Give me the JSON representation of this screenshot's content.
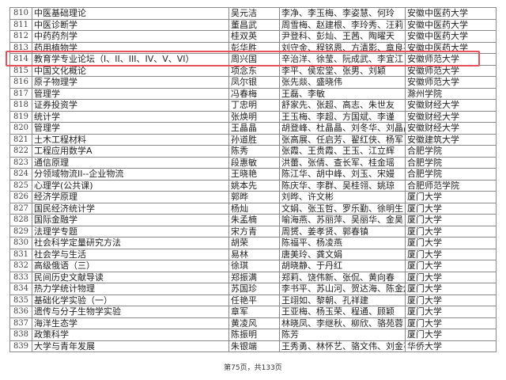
{
  "table": {
    "rows": [
      [
        "810",
        "中医基础理论",
        "吴元洁",
        "李净、李玉梅、李姿慧、何玲",
        "安徽中医药大学"
      ],
      [
        "811",
        "中医诊断学",
        "董昌武",
        "周雪梅、赵建根、李玲秀、汪莉",
        "安徽中医药大学"
      ],
      [
        "812",
        "中药药剂学",
        "桂双英",
        "尹登科、彭灿、王茜、陶曜天",
        "安徽中医药大学"
      ],
      [
        "813",
        "药用植物学",
        "彭华胜",
        "刘守金、程铭恩、方清影、章良平",
        "安徽中医药大学"
      ],
      [
        "814",
        "教育学专业论坛（I、II、III、IV、V、VI）",
        "周兴国",
        "辛治洋、徐莹、阮成武、李宜江",
        "安徽师范大学"
      ],
      [
        "815",
        "中国文化概论",
        "项念东",
        "李平、侯宏堂、张男、刘颖",
        "安徽师范大学"
      ],
      [
        "816",
        "原子物理学",
        "凤尔银",
        "张先燚、盛晓伟",
        "安徽师范大学"
      ],
      [
        "817",
        "管理学",
        "冯春梅",
        "王磊、李敏",
        "滁州学院"
      ],
      [
        "818",
        "证券投资学",
        "丁忠明",
        "舒家先、张超、高志、朱世友",
        "安徽财经大学"
      ],
      [
        "819",
        "统计学",
        "张焕明",
        "王玉梅、李超、方国斌、李谨",
        "安徽财经大学"
      ],
      [
        "820",
        "管理学",
        "王晶晶",
        "胡登峰、杜晶晶、刘冬华、刘晶晶",
        "安徽财经大学"
      ],
      [
        "821",
        "土木工程材料",
        "孙道胜",
        "张高展、任启芳、翟红侠、杨军",
        "安徽建筑大学"
      ],
      [
        "822",
        "工程应用数学A",
        "陈秀",
        "张霞、王贵霞、王玉、江立辉",
        "合肥学院"
      ],
      [
        "823",
        "通信原理",
        "段惠敏",
        "洪蕾、张倩、查长军、桂金瑶",
        "合肥学院"
      ],
      [
        "824",
        "分领域物流II--企业物流",
        "王晓艳",
        "陈江华、胡中峰、刘玉、宋嫚",
        "合肥学院"
      ],
      [
        "825",
        "心理学(公共课)",
        "姚本先",
        "陈庆华、李群、吴桂翎、姚琼",
        "合肥师范学院"
      ],
      [
        "826",
        "经济学原理",
        "郭晔",
        "刘晔、许文彬",
        "厦门大学"
      ],
      [
        "827",
        "国民经济统计学",
        "杨灿",
        "文娟、张玉哲、罗乐勤、徐明生",
        "厦门大学"
      ],
      [
        "828",
        "国际金融学",
        "朱孟楠",
        "喻海燕、苏丽萍、吴丽华、金昊",
        "厦门大学"
      ],
      [
        "829",
        "法理学专题",
        "宋方青",
        "周赟、姜孝贤、郭春镇",
        "厦门大学"
      ],
      [
        "830",
        "社会科学定量研究方法",
        "胡荣",
        "陈福平、杨凌燕",
        "厦门大学"
      ],
      [
        "831",
        "社会学与生活",
        "易林",
        "唐美玲、龚文娟",
        "厦门大学"
      ],
      [
        "832",
        "高级俄语（三）",
        "徐琪",
        "胡晓静、于丹红",
        "厦门大学"
      ],
      [
        "833",
        "民间历史文献导读",
        "郑振满",
        "郑莉、饶伟新、张侃、黄向春",
        "厦门大学"
      ],
      [
        "834",
        "热力学统计物理",
        "苏国珍",
        "李书平、苏山河、贺达海、陈金灿",
        "厦门大学"
      ],
      [
        "835",
        "基础化学实验（一）",
        "任艳平",
        "王翊如、黎朝、孔祥建",
        "厦门大学"
      ],
      [
        "836",
        "遗传与分子生物学实验",
        "章军",
        "王亚梅、杨玉荣、程通、顾颖",
        "厦门大学"
      ],
      [
        "837",
        "海洋生态学",
        "黄凌风",
        "林晓凤、李继秋、柳欣、骆苑蓉",
        "厦门大学"
      ],
      [
        "838",
        "政策科学",
        "陈振明",
        "陈芳",
        "厦门大学"
      ],
      [
        "839",
        "大学与青年发展",
        "朱银端",
        "王秀勇、林怀艺、骆文伟、刘金花",
        "华侨大学"
      ]
    ]
  },
  "highlight": {
    "row": "814",
    "color": "#e8505b"
  },
  "footer": {
    "page_text": "第75页，共133页"
  }
}
